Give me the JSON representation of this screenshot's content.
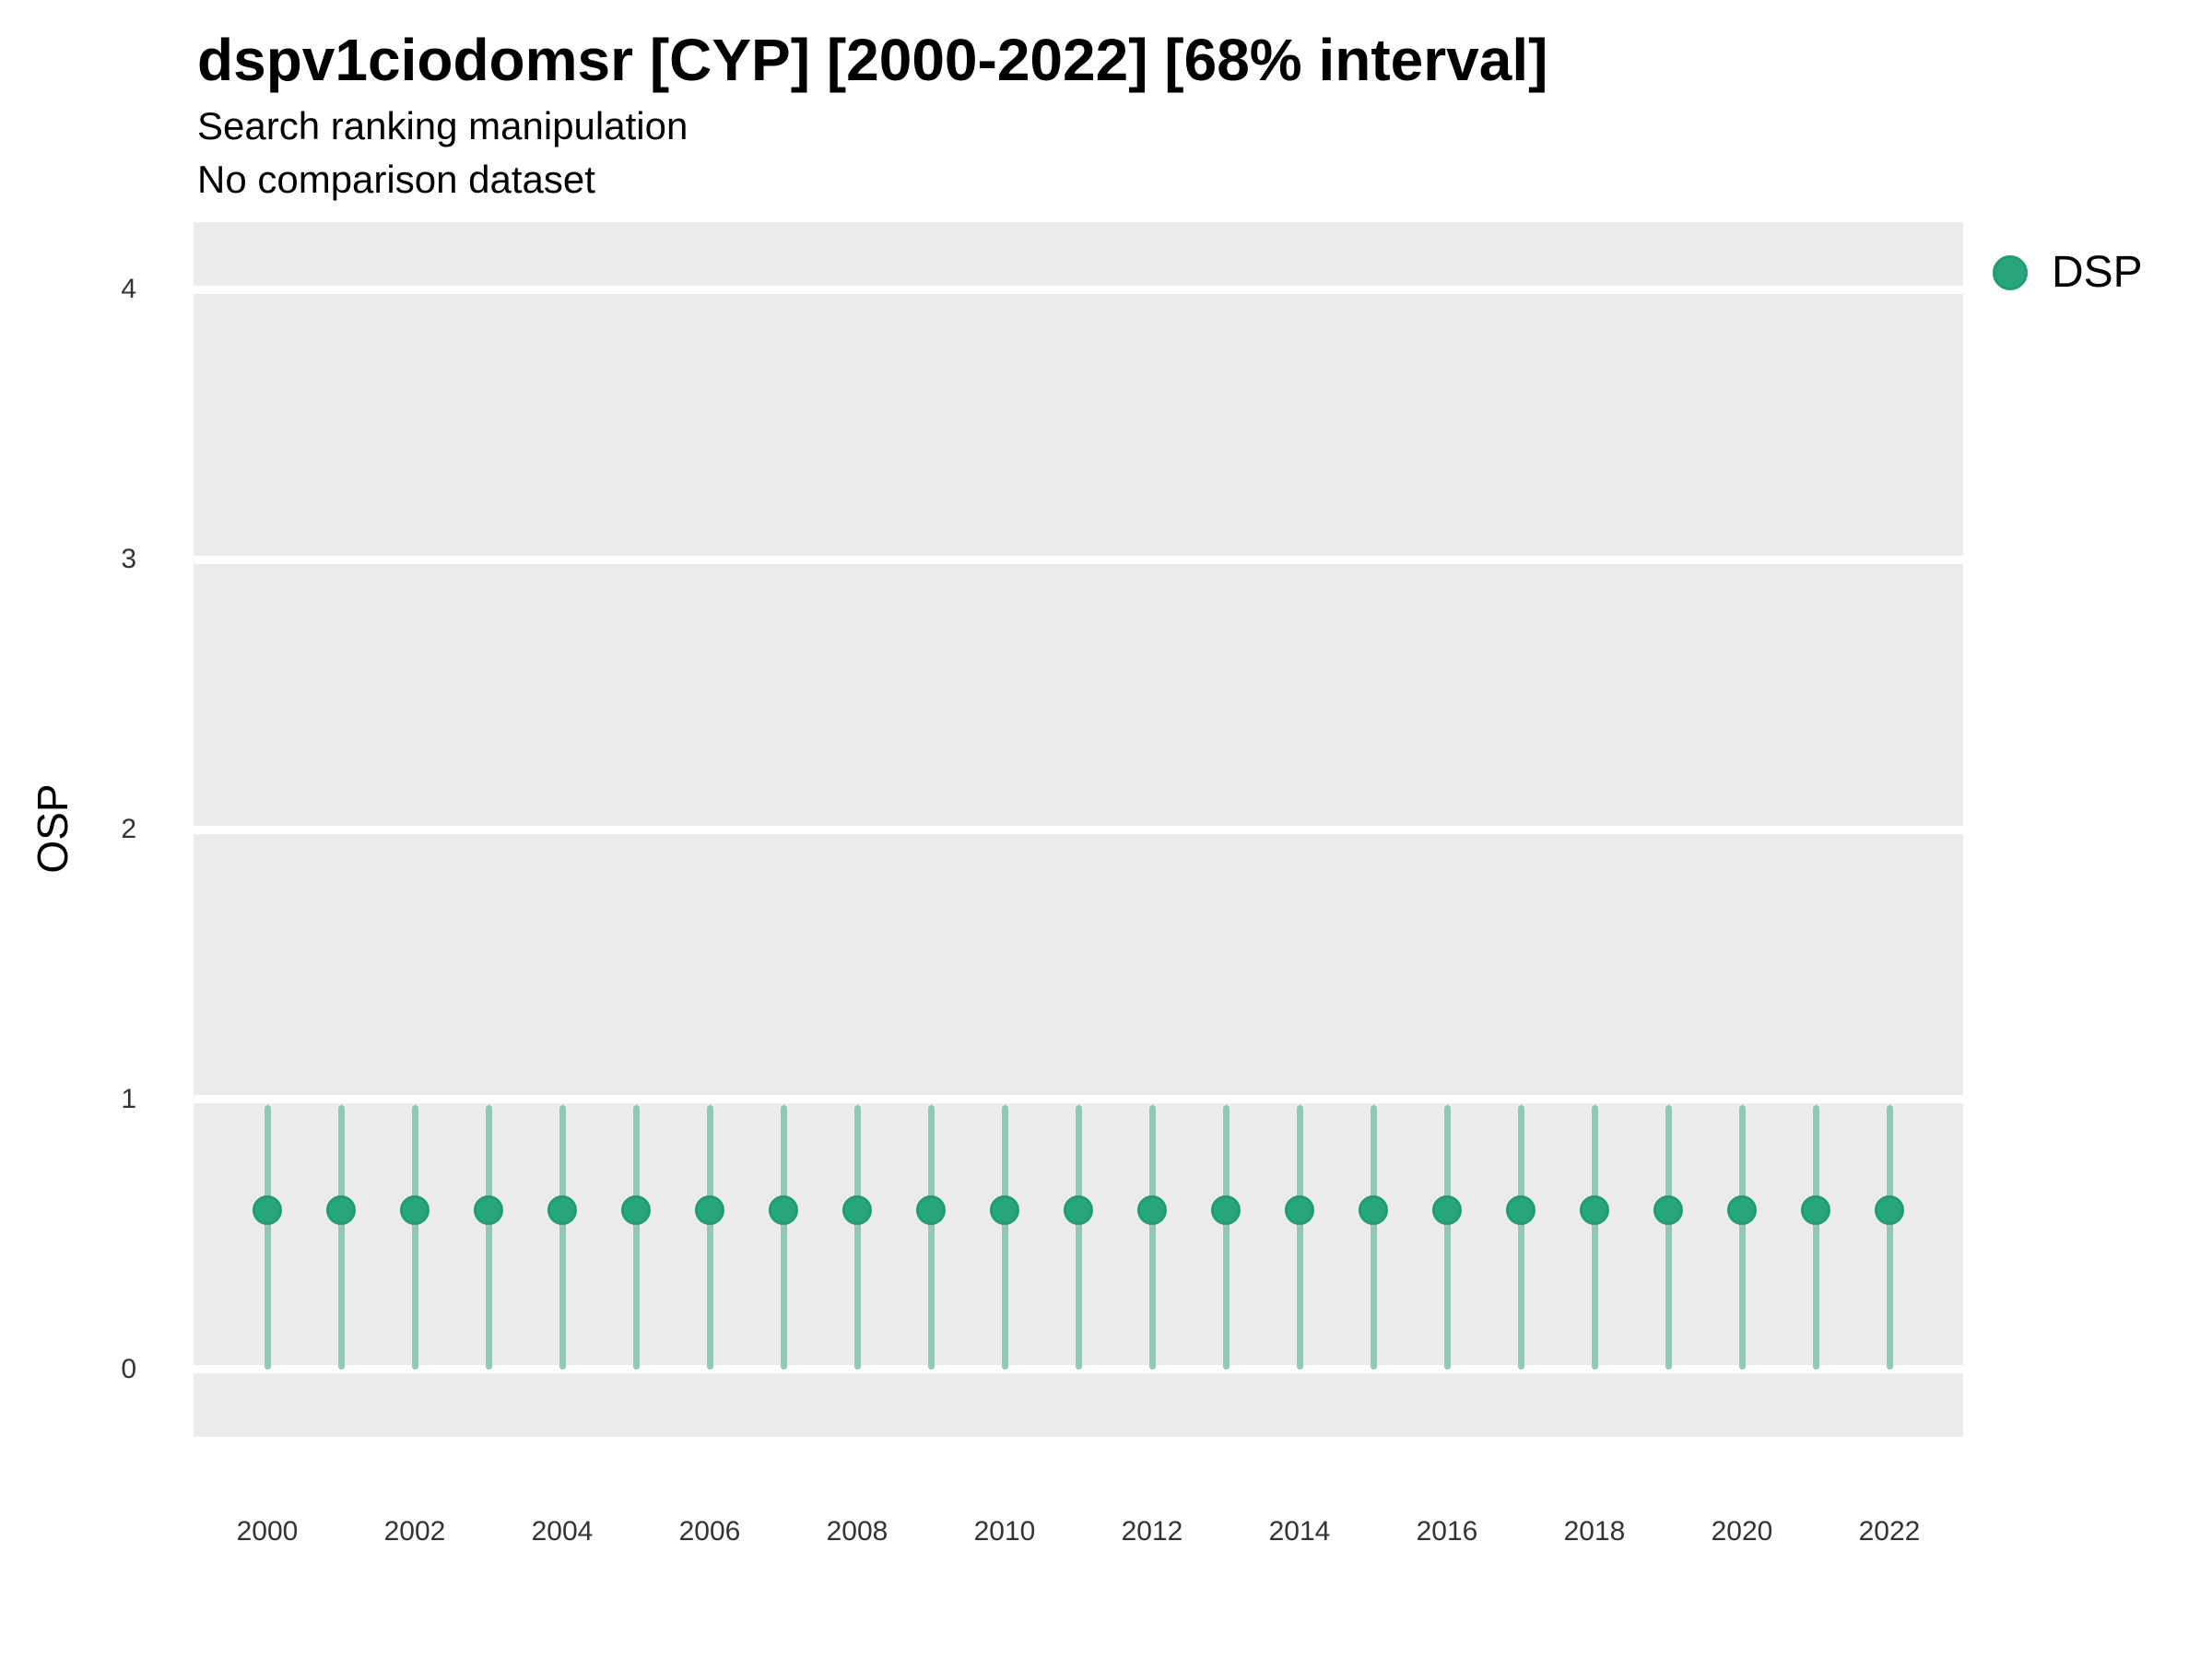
{
  "header": {
    "title": "dspv1ciodomsr [CYP] [2000-2022] [68% interval]",
    "subtitle": "Search ranking manipulation",
    "note": "No comparison dataset"
  },
  "legend": {
    "position": "right",
    "items": [
      {
        "label": "DSP",
        "color": "#27a67e",
        "stroke": "#1f9c73",
        "marker": "circle"
      }
    ]
  },
  "axes": {
    "y_title": "OSP",
    "x_title": "",
    "y_ticks": [
      0,
      1,
      2,
      3,
      4
    ],
    "x_ticks": [
      2000,
      2002,
      2004,
      2006,
      2008,
      2010,
      2012,
      2014,
      2016,
      2018,
      2020,
      2022
    ]
  },
  "chart_data": {
    "type": "scatter",
    "subtype": "pointrange",
    "title": "dspv1ciodomsr [CYP] [2000-2022] [68% interval]",
    "subtitle": "Search ranking manipulation",
    "annotation": "No comparison dataset",
    "xlabel": "",
    "ylabel": "OSP",
    "xlim": [
      1999,
      2023
    ],
    "ylim": [
      -0.25,
      4.25
    ],
    "grid": "horizontal-major-only",
    "legend_position": "right",
    "x": [
      2000,
      2001,
      2002,
      2003,
      2004,
      2005,
      2006,
      2007,
      2008,
      2009,
      2010,
      2011,
      2012,
      2013,
      2014,
      2015,
      2016,
      2017,
      2018,
      2019,
      2020,
      2021,
      2022
    ],
    "series": [
      {
        "name": "DSP",
        "values": [
          0.59,
          0.59,
          0.59,
          0.59,
          0.59,
          0.59,
          0.59,
          0.59,
          0.59,
          0.59,
          0.59,
          0.59,
          0.59,
          0.59,
          0.59,
          0.59,
          0.59,
          0.59,
          0.59,
          0.59,
          0.59,
          0.59,
          0.59
        ],
        "lower": [
          0.0,
          0.0,
          0.0,
          0.0,
          0.0,
          0.0,
          0.0,
          0.0,
          0.0,
          0.0,
          0.0,
          0.0,
          0.0,
          0.0,
          0.0,
          0.0,
          0.0,
          0.0,
          0.0,
          0.0,
          0.0,
          0.0,
          0.0
        ],
        "upper": [
          0.98,
          0.98,
          0.98,
          0.98,
          0.98,
          0.98,
          0.98,
          0.98,
          0.98,
          0.98,
          0.98,
          0.98,
          0.98,
          0.98,
          0.98,
          0.98,
          0.98,
          0.98,
          0.98,
          0.98,
          0.98,
          0.98,
          0.98
        ],
        "interval_label": "68% interval",
        "point_color": "#27a67e",
        "point_stroke": "#1f9c73",
        "interval_color": "#8ecbb4"
      }
    ],
    "colors": {
      "panel_background": "#ebebeb",
      "gridline": "#ffffff",
      "tick_text": "#333333",
      "title_text": "#000000"
    }
  }
}
